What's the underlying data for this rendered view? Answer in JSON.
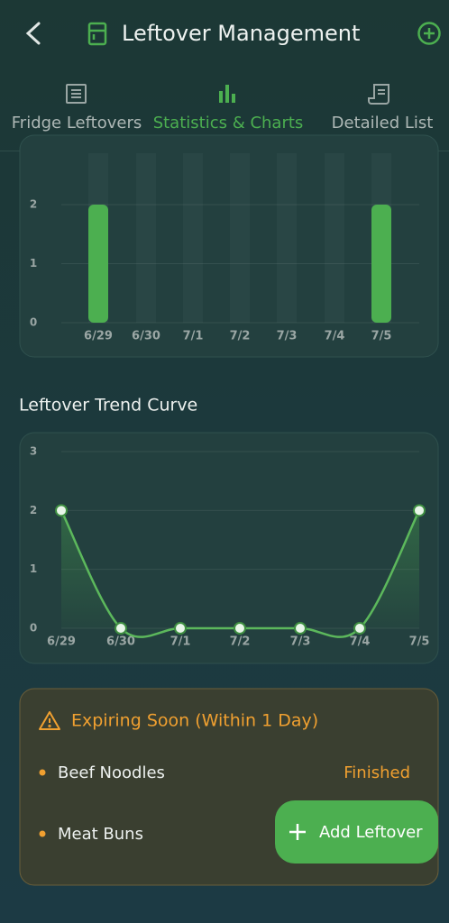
{
  "header": {
    "title": "Leftover Management"
  },
  "tabs": [
    "Fridge Leftovers",
    "Statistics & Charts",
    "Detailed List"
  ],
  "chart_data": [
    {
      "type": "bar",
      "categories": [
        "6/29",
        "6/30",
        "7/1",
        "7/2",
        "7/3",
        "7/4",
        "7/5"
      ],
      "values": [
        2,
        0,
        0,
        0,
        0,
        0,
        2
      ],
      "ylim": [
        0,
        2
      ],
      "yticks": [
        0,
        1,
        2
      ],
      "grid": true,
      "color": "#4caf50"
    },
    {
      "type": "line",
      "title": "Leftover Trend Curve",
      "categories": [
        "6/29",
        "6/30",
        "7/1",
        "7/2",
        "7/3",
        "7/4",
        "7/5"
      ],
      "values": [
        2,
        0,
        0,
        0,
        0,
        0,
        2
      ],
      "ylim": [
        0,
        3
      ],
      "yticks": [
        0,
        1,
        2,
        3
      ],
      "grid": true,
      "color": "#5cb85c"
    }
  ],
  "expiring": {
    "title": "Expiring Soon (Within 1 Day)",
    "items": [
      {
        "name": "Beef Noodles",
        "status": "Finished"
      },
      {
        "name": "Meat Buns"
      }
    ]
  },
  "fab": {
    "label": "Add Leftover"
  }
}
